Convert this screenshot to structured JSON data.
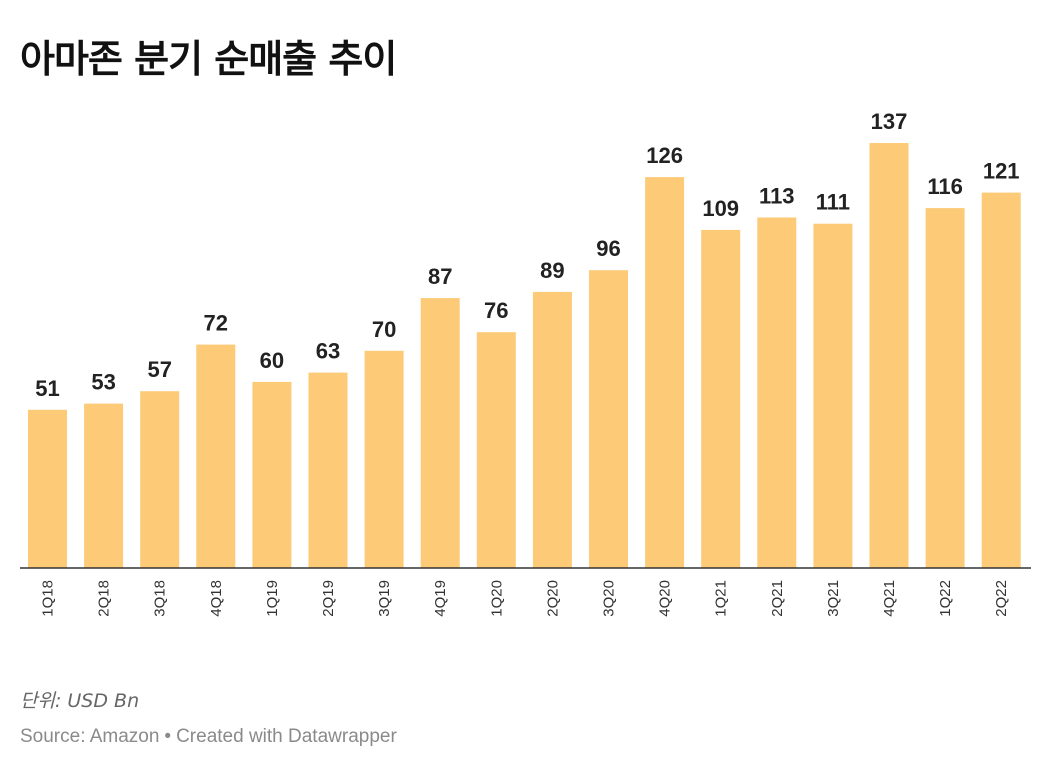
{
  "chart_data": {
    "type": "bar",
    "title": "아마존 분기 순매출 추이",
    "xlabel": "",
    "ylabel": "",
    "ylim": [
      0,
      137
    ],
    "grid": false,
    "bar_color": "#fdca77",
    "categories": [
      "1Q18",
      "2Q18",
      "3Q18",
      "4Q18",
      "1Q19",
      "2Q19",
      "3Q19",
      "4Q19",
      "1Q20",
      "2Q20",
      "3Q20",
      "4Q20",
      "1Q21",
      "2Q21",
      "3Q21",
      "4Q21",
      "1Q22",
      "2Q22"
    ],
    "values": [
      51,
      53,
      57,
      72,
      60,
      63,
      70,
      87,
      76,
      89,
      96,
      126,
      109,
      113,
      111,
      137,
      116,
      121
    ]
  },
  "notes": {
    "unit": "단위: USD Bn"
  },
  "footer": {
    "source": "Source: Amazon",
    "separator": "•",
    "credit": "Created with Datawrapper"
  }
}
